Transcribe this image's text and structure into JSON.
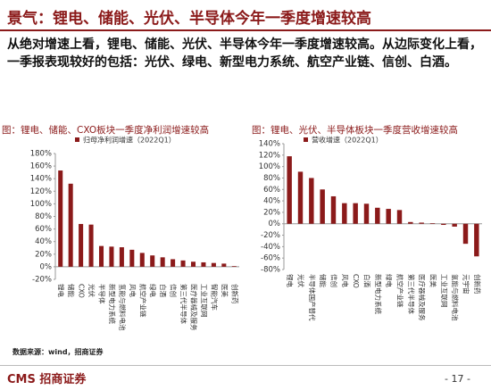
{
  "header": {
    "title": "景气：锂电、储能、光伏、半导体今年一季度增速较高"
  },
  "body": "从绝对增速上看，锂电、储能、光伏、半导体今年一季度增速较高。从边际变化上看，一季报表现较好的包括：光伏、绿电、新型电力系统、航空产业链、信创、白酒。",
  "chart_data": [
    {
      "type": "bar",
      "title": "图：锂电、储能、CXO板块一季度净利润增速较高",
      "categories": [
        "锂电",
        "储能",
        "CXO",
        "光伏",
        "半导体",
        "新型电力系统",
        "氢能与燃料电池",
        "风电",
        "航空产业链",
        "绿电",
        "白酒",
        "信创",
        "第三代半导体",
        "医疗器械及服务",
        "工业互联网",
        "智能汽车",
        "医美",
        "创新药"
      ],
      "series": [
        {
          "name": "归母净利润增速（2022Q1）",
          "color": "#8b1a1a",
          "values": [
            153,
            132,
            68,
            67,
            33,
            32,
            31,
            27,
            22,
            18,
            15,
            12,
            10,
            8,
            7,
            6,
            5,
            1
          ]
        }
      ],
      "ylim": [
        -20,
        180
      ],
      "yticks": [
        {
          "value": -20,
          "label": "-20%"
        },
        {
          "value": 0,
          "label": "0%"
        },
        {
          "value": 20,
          "label": "20%"
        },
        {
          "value": 40,
          "label": "40%"
        },
        {
          "value": 60,
          "label": "60%"
        },
        {
          "value": 80,
          "label": "80%"
        },
        {
          "value": 100,
          "label": "100%"
        },
        {
          "value": 120,
          "label": "120%"
        },
        {
          "value": 140,
          "label": "140%"
        },
        {
          "value": 160,
          "label": "160%"
        },
        {
          "value": 180,
          "label": "180%"
        }
      ]
    },
    {
      "type": "bar",
      "title": "图：锂电、光伏、半导体板块一季度营收增速较高",
      "categories": [
        "锂电",
        "光伏",
        "半导体国产替代",
        "储能",
        "信创",
        "风电",
        "CXO",
        "白酒",
        "新型电力系统",
        "绿电",
        "航空产业链",
        "第三代半导体",
        "医疗器械及服务",
        "医美",
        "工业互联网",
        "氢能与燃料电池",
        "元宇宙",
        "创新药"
      ],
      "series": [
        {
          "name": "营收增速（2022Q1）",
          "color": "#8b1a1a",
          "values": [
            118,
            91,
            80,
            60,
            48,
            36,
            36,
            35,
            28,
            26,
            24,
            3,
            2,
            1,
            -2,
            -5,
            -35,
            -57
          ]
        }
      ],
      "ylim": [
        -80,
        140
      ],
      "yticks": [
        {
          "value": -80,
          "label": "-80%"
        },
        {
          "value": -60,
          "label": "-60%"
        },
        {
          "value": -40,
          "label": "-40%"
        },
        {
          "value": -20,
          "label": "-20%"
        },
        {
          "value": 0,
          "label": "0%"
        },
        {
          "value": 20,
          "label": "20%"
        },
        {
          "value": 40,
          "label": "40%"
        },
        {
          "value": 60,
          "label": "60%"
        },
        {
          "value": 80,
          "label": "80%"
        },
        {
          "value": 100,
          "label": "100%"
        },
        {
          "value": 120,
          "label": "120%"
        },
        {
          "value": 140,
          "label": "140%"
        }
      ]
    }
  ],
  "footer": {
    "source": "数据来源：wind，招商证券",
    "logo": "CMS 招商证券",
    "page": "- 17 -"
  }
}
